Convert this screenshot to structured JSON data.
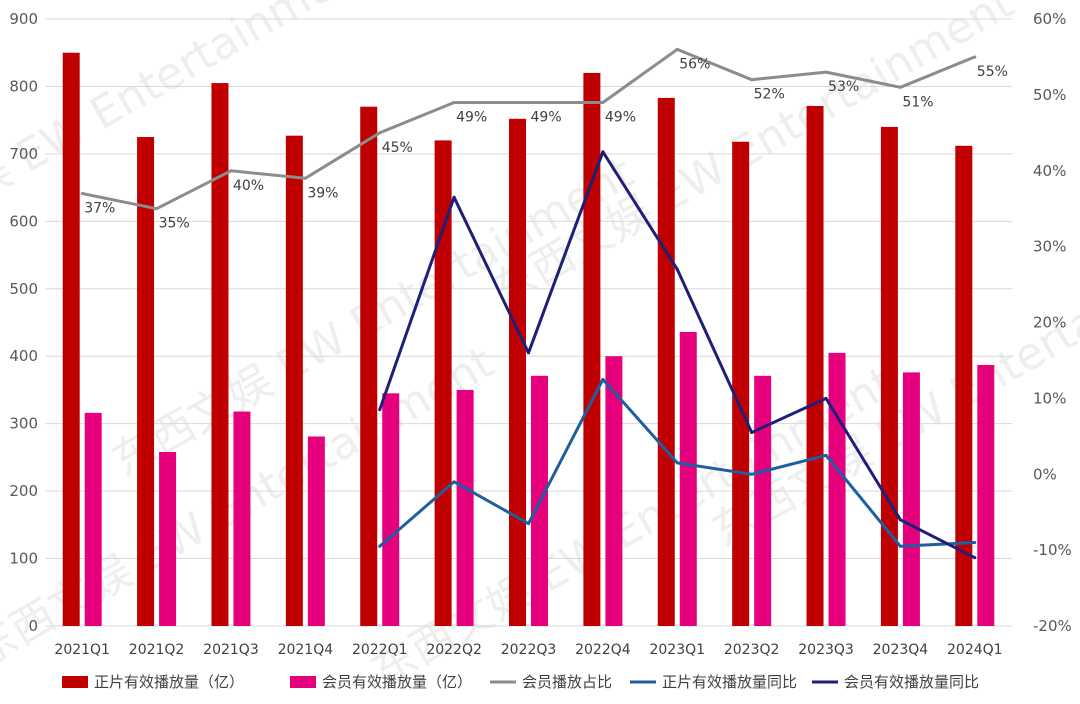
{
  "chart_data": {
    "type": "bar",
    "title": "",
    "categories": [
      "2021Q1",
      "2021Q2",
      "2021Q3",
      "2021Q4",
      "2022Q1",
      "2022Q2",
      "2022Q3",
      "2022Q4",
      "2023Q1",
      "2023Q2",
      "2023Q3",
      "2023Q4",
      "2024Q1"
    ],
    "left_axis": {
      "ylim": [
        0,
        900
      ],
      "ticks": [
        "0",
        "100",
        "200",
        "300",
        "400",
        "500",
        "600",
        "700",
        "800",
        "900"
      ]
    },
    "right_axis": {
      "ylim": [
        -20,
        60
      ],
      "ticks": [
        "-20%",
        "-10%",
        "0%",
        "10%",
        "20%",
        "30%",
        "40%",
        "50%",
        "60%"
      ]
    },
    "series": [
      {
        "name": "正片有效播放量（亿）",
        "type": "bar",
        "axis": "left",
        "color": "#c00000",
        "values": [
          850,
          725,
          805,
          727,
          770,
          720,
          752,
          820,
          783,
          718,
          771,
          740,
          712
        ]
      },
      {
        "name": "会员有效播放量（亿）",
        "type": "bar",
        "axis": "left",
        "color": "#e6007e",
        "values": [
          316,
          258,
          318,
          281,
          345,
          350,
          371,
          400,
          436,
          371,
          405,
          376,
          387
        ]
      },
      {
        "name": "会员播放占比",
        "type": "line",
        "axis": "right",
        "color": "#8c8c8c",
        "values": [
          37,
          35,
          40,
          39,
          45,
          49,
          49,
          49,
          56,
          52,
          53,
          51,
          55
        ],
        "labels": [
          "37%",
          "35%",
          "40%",
          "39%",
          "45%",
          "49%",
          "49%",
          "49%",
          "56%",
          "52%",
          "53%",
          "51%",
          "55%"
        ]
      },
      {
        "name": "正片有效播放量同比",
        "type": "line",
        "axis": "right",
        "color": "#1f5fa0",
        "values": [
          null,
          null,
          null,
          null,
          -9.5,
          -1,
          -6.5,
          12.5,
          1.5,
          0,
          2.5,
          -9.5,
          -9
        ]
      },
      {
        "name": "会员有效播放量同比",
        "type": "line",
        "axis": "right",
        "color": "#1f1f78",
        "values": [
          null,
          null,
          null,
          null,
          8.5,
          36.5,
          16,
          42.5,
          27,
          5.5,
          10,
          -6,
          -11
        ]
      }
    ],
    "watermark": "东西文娱 EW Entertainment"
  }
}
